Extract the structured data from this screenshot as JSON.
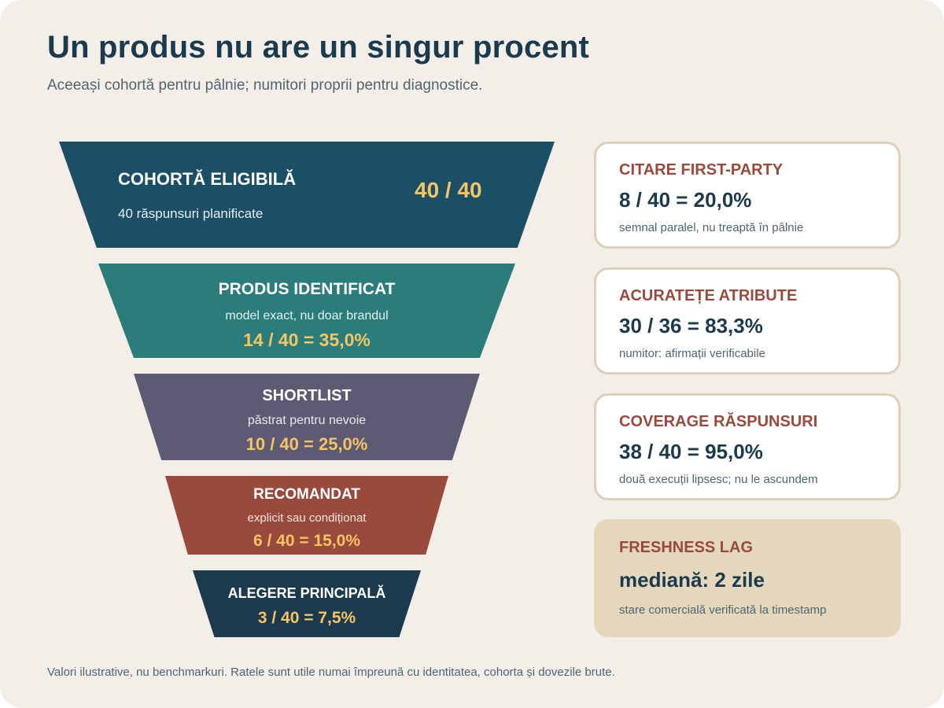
{
  "header": {
    "title": "Un produs nu are un singur procent",
    "subtitle": "Aceeași cohortă pentru pâlnie; numitori proprii pentru diagnostice."
  },
  "funnel": [
    {
      "name": "COHORTĂ ELIGIBILĂ",
      "desc": "40 răspunsuri planificate",
      "value": "40 / 40"
    },
    {
      "name": "PRODUS IDENTIFICAT",
      "desc": "model exact, nu doar brandul",
      "value": "14 / 40 = 35,0%"
    },
    {
      "name": "SHORTLIST",
      "desc": "păstrat pentru nevoie",
      "value": "10 / 40 = 25,0%"
    },
    {
      "name": "RECOMANDAT",
      "desc": "explicit sau condiționat",
      "value": "6 / 40 = 15,0%"
    },
    {
      "name": "ALEGERE PRINCIPALĂ",
      "value": "3 / 40 = 7,5%"
    }
  ],
  "metrics": [
    {
      "label": "CITARE FIRST-PARTY",
      "value": "8 / 40 = 20,0%",
      "note": "semnal paralel, nu treaptă în pâlnie"
    },
    {
      "label": "ACURATEȚE ATRIBUTE",
      "value": "30 / 36 = 83,3%",
      "note": "numitor: afirmații verificabile"
    },
    {
      "label": "COVERAGE RĂSPUNSURI",
      "value": "38 / 40 = 95,0%",
      "note": "două execuții lipsesc; nu le ascundem"
    },
    {
      "label": "FRESHNESS LAG",
      "value": "mediană: 2 zile",
      "note": "stare comercială verificată la timestamp"
    }
  ],
  "footer": "Valori ilustrative, nu benchmarkuri. Ratele sunt utile numai împreună cu identitatea, cohorta și dovezile brute.",
  "colors": {
    "background": "#f3efe8",
    "navy": "#1b3a4d",
    "stage_1": "#1a4f66",
    "stage_2": "#2a7d7b",
    "stage_3": "#5c5b73",
    "stage_4": "#9a4a3c",
    "stage_5": "#1b3a4d",
    "accent_value": "#f4c465",
    "metric_label": "#9a4a3c",
    "card_border": "#ddd0b7",
    "highlight_card": "#e4d7bc"
  }
}
